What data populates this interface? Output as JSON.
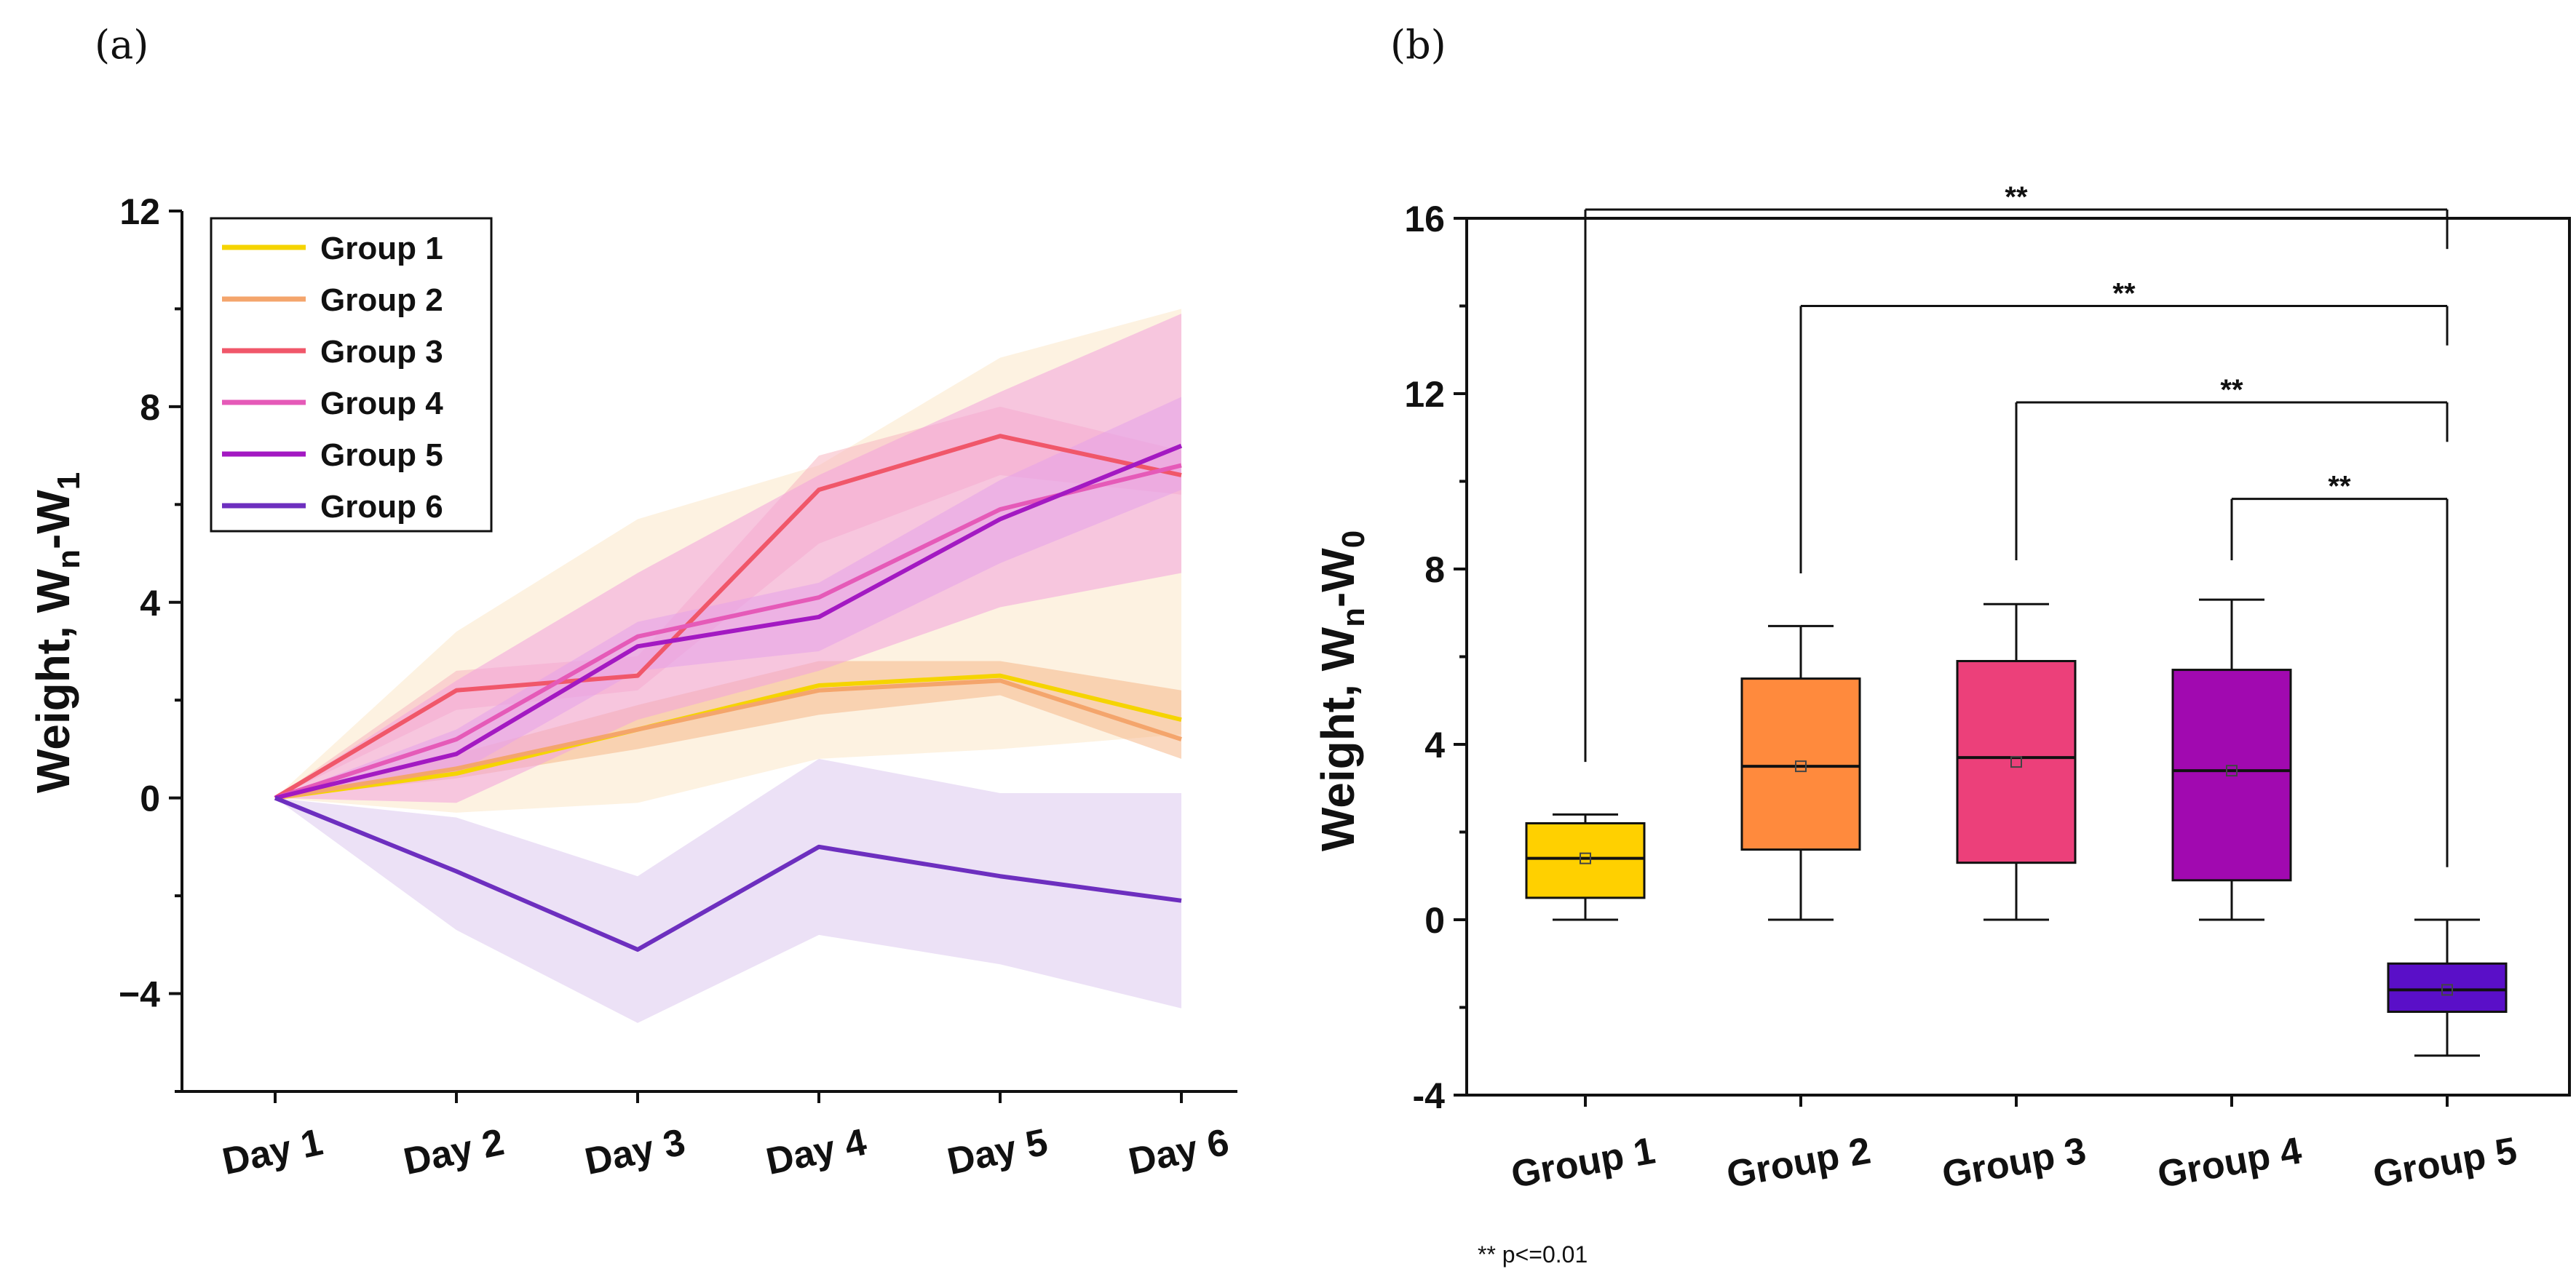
{
  "chart_data": [
    {
      "panel_label": "(a)",
      "type": "line",
      "ylabel": {
        "main": "Weight, W",
        "sub1": "n",
        "mid": "-W",
        "sub2": "1"
      },
      "xlabel": "",
      "categories": [
        "Day 1",
        "Day 2",
        "Day 3",
        "Day 4",
        "Day 5",
        "Day 6"
      ],
      "ylim": [
        -6,
        12
      ],
      "yticks": [
        12,
        8,
        4,
        0,
        -4
      ],
      "ytick_labels": [
        "12",
        "8",
        "4",
        "0",
        "−4"
      ],
      "legend_position": "top-left",
      "series": [
        {
          "name": "Group 1",
          "color": "#f5d400",
          "band_color": "#fbe8c8",
          "values": [
            0,
            0.5,
            1.4,
            2.3,
            2.5,
            1.6
          ],
          "lower": [
            0,
            -0.3,
            -0.1,
            0.8,
            1.0,
            1.3
          ],
          "upper": [
            0,
            3.4,
            5.7,
            6.8,
            9.0,
            10.0
          ]
        },
        {
          "name": "Group 2",
          "color": "#f4a56c",
          "band_color": "#f6b88a",
          "values": [
            0,
            0.6,
            1.4,
            2.2,
            2.4,
            1.2
          ],
          "lower": [
            0,
            0.4,
            1.0,
            1.7,
            2.1,
            0.8
          ],
          "upper": [
            0,
            0.9,
            1.9,
            2.8,
            2.8,
            2.2
          ]
        },
        {
          "name": "Group 3",
          "color": "#f0576a",
          "band_color": "#f7b6c1",
          "values": [
            0,
            2.2,
            2.5,
            6.3,
            7.4,
            6.6
          ],
          "lower": [
            0,
            1.8,
            2.2,
            5.2,
            6.6,
            6.2
          ],
          "upper": [
            0,
            2.6,
            2.9,
            7.0,
            8.0,
            7.1
          ]
        },
        {
          "name": "Group 4",
          "color": "#e55ab8",
          "band_color": "#f2a2dc",
          "values": [
            0,
            1.2,
            3.3,
            4.1,
            5.9,
            6.8
          ],
          "lower": [
            0,
            -0.1,
            1.6,
            2.6,
            3.9,
            4.6
          ],
          "upper": [
            0,
            2.4,
            4.6,
            6.6,
            8.3,
            9.9
          ]
        },
        {
          "name": "Group 5",
          "color": "#a319c2",
          "band_color": "#e6a3ea",
          "values": [
            0,
            0.9,
            3.1,
            3.7,
            5.7,
            7.2
          ],
          "lower": [
            0,
            0.5,
            2.6,
            3.0,
            4.8,
            6.3
          ],
          "upper": [
            0,
            1.4,
            3.6,
            4.4,
            6.5,
            8.2
          ]
        },
        {
          "name": "Group 6",
          "color": "#6d2fbf",
          "band_color": "#dcc8ef",
          "values": [
            0,
            -1.5,
            -3.1,
            -1.0,
            -1.6,
            -2.1
          ],
          "lower": [
            0,
            -2.7,
            -4.6,
            -2.8,
            -3.4,
            -4.3
          ],
          "upper": [
            0,
            -0.4,
            -1.6,
            0.8,
            0.1,
            0.1
          ]
        }
      ]
    },
    {
      "panel_label": "(b)",
      "type": "box",
      "ylabel": {
        "main": "Weight, W",
        "sub1": "n",
        "mid": "-W",
        "sub2": "0"
      },
      "xlabel": "",
      "categories": [
        "Group 1",
        "Group 2",
        "Group 3",
        "Group 4",
        "Group 5"
      ],
      "ylim": [
        -4,
        16
      ],
      "yticks": [
        16,
        12,
        8,
        4,
        0,
        -4
      ],
      "ytick_labels": [
        "16",
        "12",
        "8",
        "4",
        "0",
        "-4"
      ],
      "boxes": [
        {
          "name": "Group 1",
          "color": "#ffd000",
          "whisker_low": 0,
          "q1": 0.5,
          "median": 1.4,
          "mean": 1.4,
          "q3": 2.2,
          "whisker_high": 2.4
        },
        {
          "name": "Group 2",
          "color": "#ff8a3d",
          "whisker_low": 0,
          "q1": 1.6,
          "median": 3.5,
          "mean": 3.5,
          "q3": 5.5,
          "whisker_high": 6.7
        },
        {
          "name": "Group 3",
          "color": "#ec407a",
          "whisker_low": 0,
          "q1": 1.3,
          "median": 3.7,
          "mean": 3.6,
          "q3": 5.9,
          "whisker_high": 7.2
        },
        {
          "name": "Group 4",
          "color": "#a109b0",
          "whisker_low": 0,
          "q1": 0.9,
          "median": 3.4,
          "mean": 3.4,
          "q3": 5.7,
          "whisker_high": 7.3
        },
        {
          "name": "Group 5",
          "color": "#5a0fc8",
          "whisker_low": -3.1,
          "q1": -2.1,
          "median": -1.6,
          "mean": -1.6,
          "q3": -1.0,
          "whisker_high": 0
        }
      ],
      "significance": [
        {
          "from": "Group 1",
          "to": "Group 5",
          "label": "**",
          "y": 16.2,
          "drop_from": 3.6,
          "drop_to": 15.3
        },
        {
          "from": "Group 2",
          "to": "Group 5",
          "label": "**",
          "y": 14.0,
          "drop_from": 7.9,
          "drop_to": 13.1
        },
        {
          "from": "Group 3",
          "to": "Group 5",
          "label": "**",
          "y": 11.8,
          "drop_from": 8.2,
          "drop_to": 10.9
        },
        {
          "from": "Group 4",
          "to": "Group 5",
          "label": "**",
          "y": 9.6,
          "drop_from": 8.2,
          "drop_to": 1.2
        }
      ],
      "footnote": "** p<=0.01"
    }
  ]
}
